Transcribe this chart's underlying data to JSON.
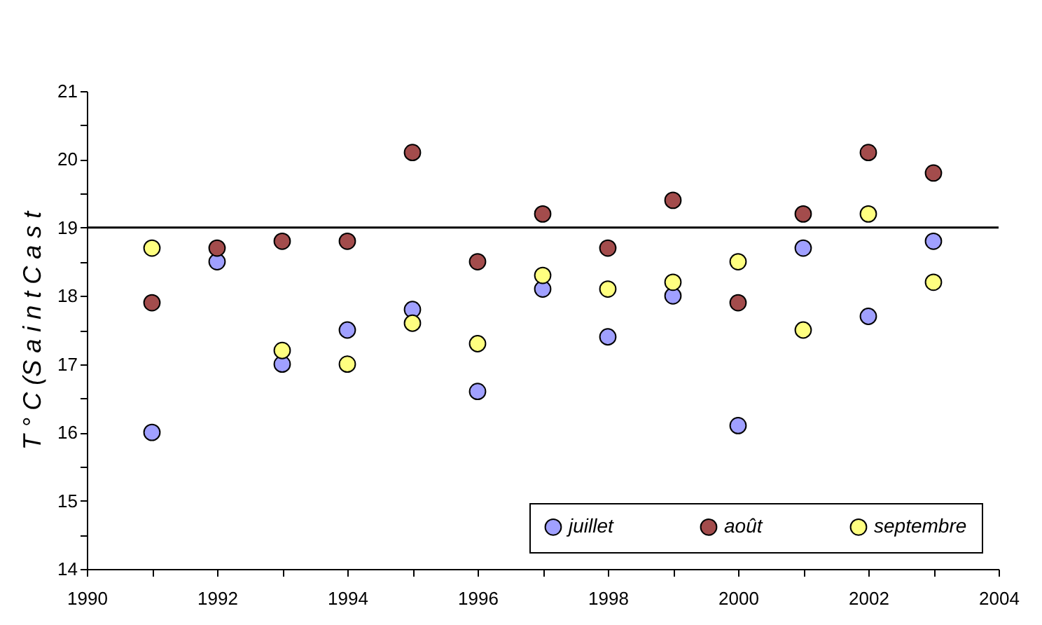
{
  "chart_data": {
    "type": "scatter",
    "ylabel": "T ° C  (S a i n t  C a s t",
    "x": [
      1991,
      1992,
      1993,
      1994,
      1995,
      1996,
      1997,
      1998,
      1999,
      2000,
      2001,
      2002,
      2003
    ],
    "series": [
      {
        "name": "juillet",
        "color": "#a0a0ff",
        "values": [
          16.0,
          18.5,
          17.0,
          17.5,
          17.8,
          16.6,
          18.1,
          17.4,
          18.0,
          16.1,
          18.7,
          17.7,
          18.8
        ]
      },
      {
        "name": "août",
        "color": "#a34c4c",
        "values": [
          17.9,
          18.7,
          18.8,
          18.8,
          20.1,
          18.5,
          19.2,
          18.7,
          19.4,
          17.9,
          19.2,
          20.1,
          19.8
        ]
      },
      {
        "name": "septembre",
        "color": "#ffff80",
        "values": [
          18.7,
          null,
          17.2,
          17.0,
          17.6,
          17.3,
          18.3,
          18.1,
          18.2,
          18.5,
          17.5,
          19.2,
          18.2
        ]
      }
    ],
    "xlim": [
      1990,
      2004
    ],
    "xticks": [
      1990,
      {
        "value": 1991,
        "label": null
      },
      1992,
      {
        "value": 1993,
        "label": null
      },
      1994,
      {
        "value": 1995,
        "label": null
      },
      1996,
      {
        "value": 1997,
        "label": null
      },
      1998,
      {
        "value": 1999,
        "label": null
      },
      2000,
      {
        "value": 2001,
        "label": null
      },
      2002,
      {
        "value": 2003,
        "label": null
      },
      2004
    ],
    "ylim": [
      14,
      21
    ],
    "yticks": [
      14,
      {
        "value": 14.5,
        "label": null
      },
      15,
      {
        "value": 15.5,
        "label": null
      },
      16,
      {
        "value": 16.5,
        "label": null
      },
      17,
      {
        "value": 17.5,
        "label": null
      },
      18,
      {
        "value": 18.5,
        "label": null
      },
      19,
      {
        "value": 19.5,
        "label": null
      },
      20,
      {
        "value": 20.5,
        "label": null
      },
      21
    ],
    "ref_lines": [
      {
        "axis": "y",
        "value": 19,
        "color": "#000000"
      }
    ],
    "legend": "bottom right",
    "marker": "circle",
    "grid": false
  }
}
